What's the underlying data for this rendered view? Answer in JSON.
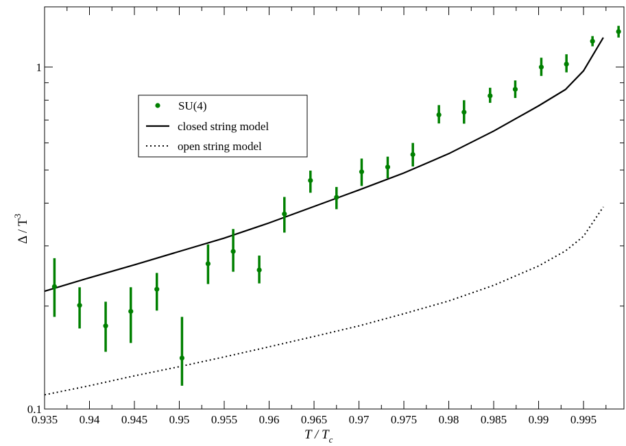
{
  "chart_data": {
    "type": "scatter",
    "x_axis": {
      "label_main": "T / T",
      "label_sub": "c",
      "range": [
        0.935,
        0.9995
      ],
      "ticks": [
        0.935,
        0.94,
        0.945,
        0.95,
        0.955,
        0.96,
        0.965,
        0.97,
        0.975,
        0.98,
        0.985,
        0.99,
        0.995
      ],
      "tick_labels": [
        "0.935",
        "0.94",
        "0.945",
        "0.95",
        "0.955",
        "0.96",
        "0.965",
        "0.97",
        "0.975",
        "0.98",
        "0.985",
        "0.99",
        "0.995"
      ],
      "minor_ticks": [
        0.9375,
        0.9425,
        0.9475,
        0.9525,
        0.9575,
        0.9625,
        0.9675,
        0.9725,
        0.9775,
        0.9825,
        0.9875,
        0.9925,
        0.9975
      ]
    },
    "y_axis": {
      "label_main": "Δ / T",
      "label_sup": "3",
      "scale": "log",
      "range": [
        0.1,
        1.5
      ],
      "ticks": [
        0.1,
        1
      ],
      "tick_labels": [
        "0.1",
        "1"
      ],
      "minor_ticks": [
        0.2,
        0.3,
        0.4,
        0.5,
        0.6,
        0.7,
        0.8,
        0.9
      ]
    },
    "legend": {
      "placement": "upper-left",
      "entries": [
        {
          "label": "SU(4)",
          "style": "marker"
        },
        {
          "label": "closed string model",
          "style": "solid"
        },
        {
          "label": "open string model",
          "style": "dotted"
        }
      ]
    },
    "colors": {
      "data": "#008000",
      "curve": "#000000"
    },
    "series": [
      {
        "name": "SU(4)",
        "kind": "points",
        "points": [
          {
            "x": 0.9361,
            "y": 0.228,
            "lo": 0.186,
            "hi": 0.276
          },
          {
            "x": 0.9389,
            "y": 0.201,
            "lo": 0.172,
            "hi": 0.227
          },
          {
            "x": 0.9418,
            "y": 0.175,
            "lo": 0.147,
            "hi": 0.206
          },
          {
            "x": 0.9446,
            "y": 0.193,
            "lo": 0.156,
            "hi": 0.227
          },
          {
            "x": 0.9475,
            "y": 0.224,
            "lo": 0.194,
            "hi": 0.25
          },
          {
            "x": 0.9503,
            "y": 0.141,
            "lo": 0.117,
            "hi": 0.186
          },
          {
            "x": 0.9532,
            "y": 0.266,
            "lo": 0.232,
            "hi": 0.303
          },
          {
            "x": 0.956,
            "y": 0.289,
            "lo": 0.252,
            "hi": 0.336
          },
          {
            "x": 0.9589,
            "y": 0.255,
            "lo": 0.233,
            "hi": 0.281
          },
          {
            "x": 0.9617,
            "y": 0.372,
            "lo": 0.328,
            "hi": 0.417
          },
          {
            "x": 0.9646,
            "y": 0.466,
            "lo": 0.429,
            "hi": 0.498
          },
          {
            "x": 0.9675,
            "y": 0.416,
            "lo": 0.384,
            "hi": 0.446
          },
          {
            "x": 0.9703,
            "y": 0.494,
            "lo": 0.449,
            "hi": 0.54
          },
          {
            "x": 0.9732,
            "y": 0.51,
            "lo": 0.473,
            "hi": 0.547
          },
          {
            "x": 0.976,
            "y": 0.555,
            "lo": 0.512,
            "hi": 0.6
          },
          {
            "x": 0.9789,
            "y": 0.725,
            "lo": 0.684,
            "hi": 0.774
          },
          {
            "x": 0.9817,
            "y": 0.738,
            "lo": 0.683,
            "hi": 0.8
          },
          {
            "x": 0.9846,
            "y": 0.824,
            "lo": 0.786,
            "hi": 0.87
          },
          {
            "x": 0.9874,
            "y": 0.861,
            "lo": 0.812,
            "hi": 0.914
          },
          {
            "x": 0.9903,
            "y": 1.0,
            "lo": 0.942,
            "hi": 1.065
          },
          {
            "x": 0.9931,
            "y": 1.02,
            "lo": 0.965,
            "hi": 1.09
          },
          {
            "x": 0.996,
            "y": 1.19,
            "lo": 1.15,
            "hi": 1.232
          },
          {
            "x": 0.9989,
            "y": 1.27,
            "lo": 1.22,
            "hi": 1.32
          }
        ]
      },
      {
        "name": "closed string model",
        "kind": "line",
        "style": "solid",
        "points": [
          {
            "x": 0.935,
            "y": 0.221
          },
          {
            "x": 0.94,
            "y": 0.242
          },
          {
            "x": 0.945,
            "y": 0.264
          },
          {
            "x": 0.95,
            "y": 0.289
          },
          {
            "x": 0.955,
            "y": 0.316
          },
          {
            "x": 0.96,
            "y": 0.35
          },
          {
            "x": 0.965,
            "y": 0.391
          },
          {
            "x": 0.97,
            "y": 0.437
          },
          {
            "x": 0.975,
            "y": 0.49
          },
          {
            "x": 0.98,
            "y": 0.558
          },
          {
            "x": 0.985,
            "y": 0.65
          },
          {
            "x": 0.99,
            "y": 0.77
          },
          {
            "x": 0.993,
            "y": 0.86
          },
          {
            "x": 0.995,
            "y": 0.975
          },
          {
            "x": 0.9972,
            "y": 1.22
          }
        ]
      },
      {
        "name": "open string model",
        "kind": "line",
        "style": "dotted",
        "points": [
          {
            "x": 0.935,
            "y": 0.11
          },
          {
            "x": 0.94,
            "y": 0.117
          },
          {
            "x": 0.945,
            "y": 0.125
          },
          {
            "x": 0.95,
            "y": 0.133
          },
          {
            "x": 0.955,
            "y": 0.142
          },
          {
            "x": 0.96,
            "y": 0.152
          },
          {
            "x": 0.965,
            "y": 0.163
          },
          {
            "x": 0.97,
            "y": 0.175
          },
          {
            "x": 0.975,
            "y": 0.19
          },
          {
            "x": 0.98,
            "y": 0.207
          },
          {
            "x": 0.985,
            "y": 0.23
          },
          {
            "x": 0.99,
            "y": 0.262
          },
          {
            "x": 0.993,
            "y": 0.29
          },
          {
            "x": 0.995,
            "y": 0.32
          },
          {
            "x": 0.9972,
            "y": 0.39
          }
        ]
      }
    ]
  }
}
